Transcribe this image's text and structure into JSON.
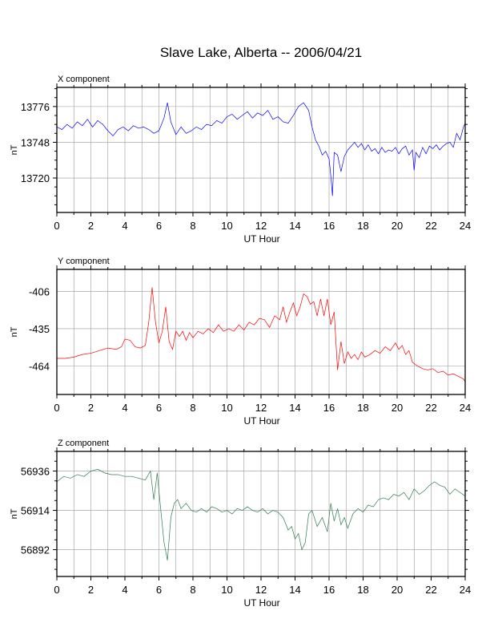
{
  "title": "Slave Lake, Alberta -- 2006/04/21",
  "chart_data": [
    {
      "type": "line",
      "subtitle": "X component",
      "xlabel": "UT Hour",
      "ylabel": "nT",
      "xlim": [
        0,
        24
      ],
      "ylim": [
        13693,
        13791
      ],
      "xticks": [
        0,
        2,
        4,
        6,
        8,
        10,
        12,
        14,
        16,
        18,
        20,
        22,
        24
      ],
      "yticks": [
        13720,
        13748,
        13776
      ],
      "grid": true,
      "color": "#0000ff",
      "series": [
        {
          "x": [
            0,
            0.3,
            0.6,
            0.9,
            1.2,
            1.5,
            1.8,
            2.1,
            2.4,
            2.7,
            3.0,
            3.3,
            3.6,
            3.9,
            4.2,
            4.5,
            4.8,
            5.1,
            5.4,
            5.7,
            6.0,
            6.3,
            6.5,
            6.7,
            7.0,
            7.3,
            7.6,
            7.9,
            8.2,
            8.5,
            8.8,
            9.1,
            9.4,
            9.7,
            10.0,
            10.3,
            10.6,
            10.9,
            11.2,
            11.5,
            11.8,
            12.1,
            12.4,
            12.7,
            13.0,
            13.3,
            13.6,
            13.9,
            14.2,
            14.5,
            14.8,
            15.0,
            15.2,
            15.4,
            15.6,
            15.8,
            16.0,
            16.1,
            16.2,
            16.3,
            16.5,
            16.7,
            16.9,
            17.1,
            17.3,
            17.5,
            17.7,
            17.9,
            18.1,
            18.3,
            18.5,
            18.7,
            18.9,
            19.1,
            19.3,
            19.5,
            19.7,
            19.9,
            20.1,
            20.3,
            20.5,
            20.7,
            20.9,
            21.0,
            21.1,
            21.3,
            21.5,
            21.7,
            21.9,
            22.1,
            22.3,
            22.5,
            22.7,
            22.9,
            23.1,
            23.3,
            23.5,
            23.7,
            23.9,
            24.0
          ],
          "y": [
            13760,
            13758,
            13762,
            13759,
            13764,
            13761,
            13766,
            13760,
            13765,
            13762,
            13757,
            13753,
            13758,
            13760,
            13757,
            13761,
            13759,
            13760,
            13758,
            13755,
            13757,
            13767,
            13779,
            13764,
            13754,
            13760,
            13755,
            13757,
            13760,
            13758,
            13762,
            13761,
            13765,
            13763,
            13768,
            13770,
            13766,
            13769,
            13772,
            13767,
            13771,
            13769,
            13773,
            13766,
            13768,
            13764,
            13763,
            13769,
            13776,
            13779,
            13773,
            13760,
            13750,
            13745,
            13738,
            13741,
            13735,
            13722,
            13706,
            13740,
            13738,
            13725,
            13737,
            13742,
            13745,
            13748,
            13744,
            13747,
            13742,
            13746,
            13741,
            13743,
            13739,
            13744,
            13740,
            13742,
            13741,
            13744,
            13739,
            13743,
            13745,
            13738,
            13742,
            13726,
            13740,
            13736,
            13744,
            13739,
            13745,
            13743,
            13746,
            13742,
            13745,
            13747,
            13748,
            13744,
            13755,
            13750,
            13760,
            13763
          ]
        }
      ]
    },
    {
      "type": "line",
      "subtitle": "Y component",
      "xlabel": "UT Hour",
      "ylabel": "nT",
      "xlim": [
        0,
        24
      ],
      "ylim": [
        -486,
        -389
      ],
      "xticks": [
        0,
        2,
        4,
        6,
        8,
        10,
        12,
        14,
        16,
        18,
        20,
        22,
        24
      ],
      "yticks": [
        -406,
        -435,
        -464
      ],
      "grid": true,
      "color": "#ff0000",
      "series": [
        {
          "x": [
            0,
            0.5,
            1.0,
            1.5,
            2.0,
            2.5,
            3.0,
            3.5,
            3.8,
            4.0,
            4.3,
            4.6,
            4.9,
            5.2,
            5.4,
            5.6,
            5.8,
            6.0,
            6.2,
            6.4,
            6.6,
            6.8,
            7.0,
            7.2,
            7.4,
            7.6,
            7.8,
            8.0,
            8.3,
            8.6,
            8.9,
            9.2,
            9.5,
            9.8,
            10.1,
            10.4,
            10.7,
            11.0,
            11.3,
            11.6,
            11.9,
            12.2,
            12.5,
            12.8,
            13.1,
            13.3,
            13.5,
            13.7,
            13.9,
            14.1,
            14.3,
            14.5,
            14.7,
            14.9,
            15.1,
            15.3,
            15.5,
            15.7,
            15.9,
            16.1,
            16.3,
            16.5,
            16.7,
            16.9,
            17.1,
            17.3,
            17.5,
            17.7,
            17.9,
            18.1,
            18.4,
            18.7,
            19.0,
            19.3,
            19.6,
            19.9,
            20.1,
            20.3,
            20.5,
            20.7,
            20.9,
            21.2,
            21.5,
            21.8,
            22.1,
            22.4,
            22.7,
            23.0,
            23.3,
            23.6,
            23.9,
            24.0
          ],
          "y": [
            -458,
            -458,
            -457,
            -455,
            -454,
            -452,
            -450,
            -451,
            -449,
            -443,
            -444,
            -449,
            -450,
            -448,
            -430,
            -403,
            -430,
            -446,
            -437,
            -418,
            -445,
            -451,
            -437,
            -441,
            -437,
            -444,
            -438,
            -442,
            -437,
            -439,
            -435,
            -438,
            -432,
            -437,
            -435,
            -437,
            -432,
            -436,
            -430,
            -432,
            -427,
            -428,
            -434,
            -425,
            -428,
            -418,
            -430,
            -422,
            -415,
            -425,
            -418,
            -408,
            -410,
            -416,
            -414,
            -425,
            -412,
            -425,
            -412,
            -432,
            -422,
            -467,
            -445,
            -462,
            -453,
            -458,
            -455,
            -459,
            -453,
            -457,
            -455,
            -452,
            -454,
            -449,
            -452,
            -446,
            -451,
            -448,
            -455,
            -452,
            -461,
            -464,
            -466,
            -467,
            -466,
            -469,
            -468,
            -471,
            -470,
            -472,
            -474,
            -476
          ]
        }
      ]
    },
    {
      "type": "line",
      "subtitle": "Z component",
      "xlabel": "UT Hour",
      "ylabel": "nT",
      "xlim": [
        0,
        24
      ],
      "ylim": [
        56877,
        56947
      ],
      "xticks": [
        0,
        2,
        4,
        6,
        8,
        10,
        12,
        14,
        16,
        18,
        20,
        22,
        24
      ],
      "yticks": [
        56892,
        56914,
        56936
      ],
      "grid": true,
      "color": "#2e7d4f",
      "series": [
        {
          "x": [
            0,
            0.4,
            0.8,
            1.2,
            1.6,
            2.0,
            2.4,
            2.8,
            3.2,
            3.6,
            4.0,
            4.4,
            4.8,
            5.2,
            5.5,
            5.7,
            5.9,
            6.1,
            6.3,
            6.5,
            6.7,
            6.9,
            7.1,
            7.3,
            7.6,
            7.9,
            8.2,
            8.5,
            8.8,
            9.1,
            9.4,
            9.7,
            10.0,
            10.3,
            10.6,
            10.9,
            11.2,
            11.5,
            11.8,
            12.1,
            12.4,
            12.7,
            13.0,
            13.3,
            13.6,
            13.8,
            14.0,
            14.2,
            14.4,
            14.6,
            14.8,
            15.0,
            15.3,
            15.6,
            15.9,
            16.1,
            16.3,
            16.5,
            16.7,
            16.9,
            17.1,
            17.4,
            17.7,
            18.0,
            18.3,
            18.6,
            18.9,
            19.2,
            19.5,
            19.8,
            20.1,
            20.4,
            20.7,
            21.0,
            21.3,
            21.6,
            21.9,
            22.2,
            22.5,
            22.8,
            23.1,
            23.4,
            23.7,
            24.0
          ],
          "y": [
            56930,
            56933,
            56932,
            56934,
            56933,
            56936,
            56937,
            56935,
            56934,
            56934,
            56933,
            56933,
            56932,
            56931,
            56936,
            56920,
            56935,
            56915,
            56896,
            56886,
            56910,
            56918,
            56920,
            56915,
            56918,
            56914,
            56913,
            56915,
            56913,
            56916,
            56915,
            56913,
            56914,
            56912,
            56915,
            56914,
            56916,
            56914,
            56913,
            56915,
            56912,
            56914,
            56913,
            56910,
            56903,
            56905,
            56898,
            56901,
            56892,
            56896,
            56912,
            56914,
            56905,
            56910,
            56902,
            56918,
            56908,
            56915,
            56906,
            56910,
            56904,
            56912,
            56915,
            56913,
            56917,
            56916,
            56920,
            56921,
            56920,
            56923,
            56922,
            56924,
            56920,
            56926,
            56923,
            56925,
            56928,
            56930,
            56928,
            56927,
            56923,
            56926,
            56924,
            56922
          ]
        }
      ]
    }
  ]
}
